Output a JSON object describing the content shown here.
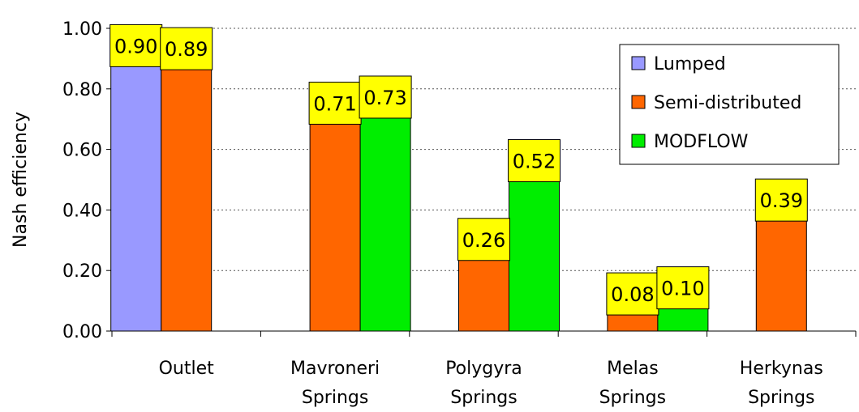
{
  "chart_data": {
    "type": "bar",
    "categories": [
      [
        "Outlet"
      ],
      [
        "Mavroneri",
        "Springs"
      ],
      [
        "Polygyra",
        "Springs"
      ],
      [
        "Melas",
        "Springs"
      ],
      [
        "Herkynas",
        "Springs"
      ]
    ],
    "ylabel": "Nash efficiency",
    "xlabel": "",
    "ylim": [
      0,
      1.0
    ],
    "yticks": [
      "0.00",
      "0.20",
      "0.40",
      "0.60",
      "0.80",
      "1.00"
    ],
    "grid": true,
    "legend_position": "top-right",
    "series": [
      {
        "name": "Lumped",
        "color": "#9999ff",
        "values": [
          0.9,
          null,
          null,
          null,
          null
        ],
        "labels": [
          "0.90",
          "",
          "",
          "",
          ""
        ]
      },
      {
        "name": "Semi-distributed",
        "color": "#ff6600",
        "values": [
          0.89,
          0.71,
          0.26,
          0.08,
          0.39
        ],
        "labels": [
          "0.89",
          "0.71",
          "0.26",
          "0.08",
          "0.39"
        ]
      },
      {
        "name": "MODFLOW",
        "color": "#00ee00",
        "values": [
          null,
          0.73,
          0.52,
          0.1,
          null
        ],
        "labels": [
          "",
          "0.73",
          "0.52",
          "0.10",
          ""
        ]
      }
    ],
    "data_label_color": "#ffff00"
  }
}
